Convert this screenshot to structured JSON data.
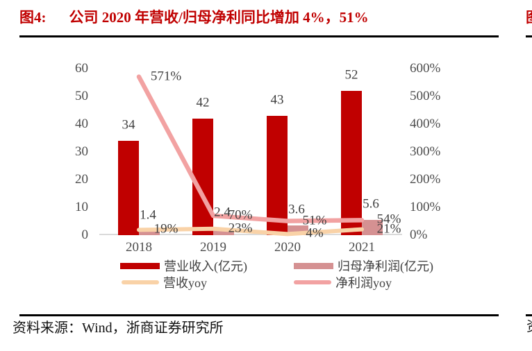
{
  "header": {
    "figure_label": "图4:",
    "title": "公司 2020 年营收/归母净利同比增加 4%，51%"
  },
  "footer": {
    "source_text": "资料来源：Wind，浙商证券研究所"
  },
  "adjacent": {
    "figure_char": "图",
    "source_char": "资"
  },
  "colors": {
    "title_red": "#C00000",
    "divider": "#000000",
    "axis_text": "#4D4D4D",
    "data_label_text": "#3F3F3F",
    "baseline_gray": "#DADADA"
  },
  "chart_data": {
    "type": "bar+line",
    "title": "公司 2020 年营收/归母净利同比增加 4%，51%",
    "categories": [
      "2018",
      "2019",
      "2020",
      "2021"
    ],
    "series": [
      {
        "name": "营业收入(亿元)",
        "type": "bar",
        "axis": "left",
        "color": "#C00000",
        "values": [
          34,
          42,
          43,
          52
        ],
        "labels": [
          "34",
          "42",
          "43",
          "52"
        ]
      },
      {
        "name": "归母净利润(亿元)",
        "type": "bar",
        "axis": "left",
        "color": "#D59192",
        "values": [
          1.4,
          2.4,
          3.6,
          5.6
        ],
        "labels": [
          "1.4",
          "2.4",
          "3.6",
          "5.6"
        ]
      },
      {
        "name": "营收yoy",
        "type": "line",
        "axis": "right",
        "color": "#F9D2A7",
        "values": [
          19,
          23,
          4,
          21
        ],
        "labels": [
          "19%",
          "23%",
          "4%",
          "21%"
        ]
      },
      {
        "name": "净利润yoy",
        "type": "line",
        "axis": "right",
        "color": "#F2A2A2",
        "values": [
          571,
          70,
          51,
          54
        ],
        "labels": [
          "571%",
          "70%",
          "51%",
          "54%"
        ]
      }
    ],
    "left_axis": {
      "min": 0,
      "max": 60,
      "step": 10,
      "ticks": [
        "0",
        "10",
        "20",
        "30",
        "40",
        "50",
        "60"
      ]
    },
    "right_axis": {
      "min": 0,
      "max": 600,
      "step": 100,
      "ticks": [
        "0%",
        "100%",
        "200%",
        "300%",
        "400%",
        "500%",
        "600%"
      ]
    },
    "legend_position": "bottom",
    "grid": false
  }
}
